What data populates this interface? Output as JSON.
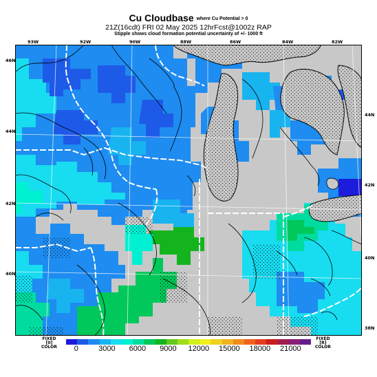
{
  "header": {
    "title": "Cu Cloudbase",
    "title_note": "where Cu Potential > 0",
    "subtitle": "21Z(16cdt) FRI 02 May 2025 12hrFcst@1002z RAP",
    "note": "Stipple shows cloud formation potential uncertainty of +/- 1000 ft"
  },
  "map": {
    "projection_box_lon_labels": [
      "93W",
      "92W",
      "90W",
      "88W",
      "86W",
      "84W",
      "82W"
    ],
    "lat_labels_left": [
      "46N",
      "44N",
      "42N",
      "40N"
    ],
    "lat_labels_right": [
      "44N",
      "42N",
      "40N",
      "38N"
    ],
    "colors": {
      "background_gray": "#c8c8c8",
      "boundary_white": "#ffffff",
      "contour_black": "#000000"
    }
  },
  "colorbar": {
    "left_label": [
      "FIXED",
      "[0]",
      "COLOR"
    ],
    "right_label": [
      "FIXED",
      "[R]",
      "COLOR"
    ],
    "tick_labels": [
      "0",
      "3000",
      "6000",
      "9000",
      "12000",
      "15000",
      "18000",
      "21000"
    ],
    "tick_values": [
      0,
      3000,
      6000,
      9000,
      12000,
      15000,
      18000,
      21000
    ],
    "range": [
      -1000,
      23000
    ],
    "colors": [
      "#1c1cdc",
      "#1e5ae8",
      "#1e8cf0",
      "#18b4f0",
      "#18dcf0",
      "#00f0d2",
      "#00dca0",
      "#00c85a",
      "#14b41e",
      "#64c81e",
      "#a0dc1e",
      "#d2f01e",
      "#f0f01e",
      "#f0d21e",
      "#f0b41e",
      "#f08c1e",
      "#f0641e",
      "#e63c1e",
      "#c81e1e",
      "#a01e50",
      "#8c1e78",
      "#641e8c"
    ]
  }
}
